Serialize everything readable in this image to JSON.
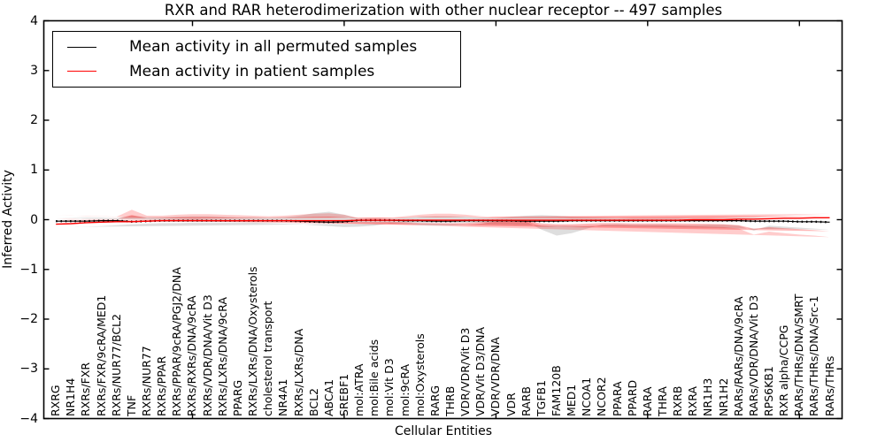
{
  "chart_data": {
    "type": "line",
    "title": "RXR and RAR heterodimerization with other nuclear receptor -- 497 samples",
    "xlabel": "Cellular Entities",
    "ylabel": "Inferred Activity",
    "ylim": [
      -4,
      4
    ],
    "yticks": [
      4,
      3,
      2,
      1,
      0,
      -1,
      -2,
      -3,
      -4
    ],
    "ytick_labels": [
      "4",
      "3",
      "2",
      "1",
      "0",
      "−1",
      "−2",
      "−3",
      "−4"
    ],
    "xtick_major_indices": [
      9,
      19,
      29,
      39,
      49
    ],
    "grid": false,
    "legend_position": "upper left",
    "categories": [
      "RXRG",
      "NR1H4",
      "RXRs/FXR",
      "RXRs/FXR/9cRA/MED1",
      "RXRs/NUR77/BCL2",
      "TNF",
      "RXRs/NUR77",
      "RXRs/PPAR",
      "RXRs/PPAR/9cRA/PGJ2/DNA",
      "RXRs/RXRs/DNA/9cRA",
      "RXRs/VDR/DNA/Vit D3",
      "RXRs/LXRs/DNA/9cRA",
      "PPARG",
      "RXRs/LXRs/DNA/Oxysterols",
      "cholesterol transport",
      "NR4A1",
      "RXRs/LXRs/DNA",
      "BCL2",
      "ABCA1",
      "SREBF1",
      "mol:ATRA",
      "mol:Bile acids",
      "mol:Vit D3",
      "mol:9cRA",
      "mol:Oxysterols",
      "RARG",
      "THRB",
      "VDR/VDR/Vit D3",
      "VDR/Vit D3/DNA",
      "VDR/VDR/DNA",
      "VDR",
      "RARB",
      "TGFB1",
      "FAM120B",
      "MED1",
      "NCOA1",
      "NCOR2",
      "PPARA",
      "PPARD",
      "RARA",
      "THRA",
      "RXRB",
      "RXRA",
      "NR1H3",
      "NR1H2",
      "RARs/RARs/DNA/9cRA",
      "RARs/VDR/DNA/Vit D3",
      "RPS6KB1",
      "RXR alpha/CCPG",
      "RARs/THRs/DNA/SMRT",
      "RARs/THRs/DNA/Src-1",
      "RARs/THRs"
    ],
    "series": [
      {
        "name": "Mean activity in all permuted samples",
        "color": "#000000",
        "values": [
          -0.03,
          -0.03,
          -0.03,
          -0.02,
          -0.02,
          -0.04,
          -0.03,
          -0.02,
          -0.02,
          -0.02,
          -0.02,
          -0.02,
          -0.02,
          -0.02,
          -0.02,
          -0.02,
          -0.03,
          -0.04,
          -0.05,
          -0.04,
          -0.01,
          -0.01,
          -0.01,
          -0.02,
          -0.02,
          -0.03,
          -0.03,
          -0.02,
          -0.02,
          -0.02,
          -0.02,
          -0.03,
          -0.03,
          -0.03,
          -0.02,
          -0.02,
          -0.02,
          -0.02,
          -0.02,
          -0.02,
          -0.02,
          -0.02,
          -0.02,
          -0.02,
          -0.02,
          -0.02,
          -0.03,
          -0.03,
          -0.03,
          -0.04,
          -0.04,
          -0.05
        ]
      },
      {
        "name": "Mean activity in patient samples",
        "color": "#ff0000",
        "values": [
          -0.09,
          -0.08,
          -0.06,
          -0.05,
          -0.04,
          -0.04,
          -0.03,
          -0.02,
          -0.02,
          -0.02,
          -0.02,
          -0.02,
          -0.02,
          -0.02,
          -0.02,
          -0.02,
          -0.02,
          -0.02,
          -0.02,
          -0.02,
          -0.01,
          -0.01,
          -0.01,
          -0.01,
          -0.01,
          -0.01,
          -0.01,
          -0.01,
          -0.01,
          -0.01,
          -0.01,
          -0.01,
          -0.01,
          -0.01,
          -0.01,
          -0.01,
          -0.01,
          -0.01,
          -0.01,
          -0.01,
          -0.01,
          -0.01,
          0.0,
          0.0,
          0.0,
          0.01,
          0.01,
          0.02,
          0.03,
          0.03,
          0.04,
          0.04
        ]
      }
    ],
    "bands": [
      {
        "name": "permuted-samples-range",
        "color": "#888888",
        "upper": [
          0.03,
          0.03,
          0.04,
          0.04,
          0.03,
          0.08,
          0.05,
          0.05,
          0.06,
          0.07,
          0.07,
          0.06,
          0.05,
          0.05,
          0.04,
          0.05,
          0.08,
          0.13,
          0.16,
          0.1,
          0.02,
          0.02,
          0.02,
          0.04,
          0.06,
          0.07,
          0.07,
          0.06,
          0.04,
          0.03,
          0.06,
          0.08,
          0.09,
          0.08,
          0.06,
          0.05,
          0.04,
          0.03,
          0.03,
          0.03,
          0.03,
          0.03,
          0.03,
          0.03,
          0.03,
          0.04,
          0.04,
          0.03,
          0.02,
          0.02,
          0.02,
          0.02
        ],
        "lower": [
          -0.2,
          -0.18,
          -0.16,
          -0.14,
          -0.12,
          -0.22,
          -0.12,
          -0.1,
          -0.1,
          -0.11,
          -0.11,
          -0.1,
          -0.1,
          -0.1,
          -0.09,
          -0.1,
          -0.18,
          -0.27,
          -0.32,
          -0.2,
          -0.04,
          -0.03,
          -0.04,
          -0.08,
          -0.1,
          -0.12,
          -0.12,
          -0.11,
          -0.08,
          -0.07,
          -0.12,
          -0.14,
          -0.15,
          -0.13,
          -0.11,
          -0.09,
          -0.08,
          -0.07,
          -0.06,
          -0.06,
          -0.06,
          -0.06,
          -0.06,
          -0.07,
          -0.07,
          -0.08,
          -0.09,
          -0.11,
          -0.13,
          -0.14,
          -0.15,
          -0.15
        ]
      },
      {
        "name": "patient-samples-range",
        "color": "#ff0000",
        "upper": [
          0.09,
          0.08,
          0.08,
          0.07,
          0.06,
          0.2,
          0.08,
          0.08,
          0.1,
          0.11,
          0.11,
          0.1,
          0.09,
          0.08,
          0.07,
          0.08,
          0.1,
          0.12,
          0.13,
          0.1,
          0.03,
          0.02,
          0.04,
          0.07,
          0.1,
          0.12,
          0.12,
          0.1,
          0.07,
          0.05,
          0.05,
          0.05,
          0.05,
          0.05,
          0.04,
          0.04,
          0.04,
          0.04,
          0.03,
          0.03,
          0.03,
          0.03,
          0.04,
          0.04,
          0.05,
          0.06,
          0.07,
          0.08,
          0.09,
          0.1,
          0.11,
          0.12
        ],
        "lower": [
          -0.35,
          -0.32,
          -0.3,
          -0.27,
          -0.24,
          -0.3,
          -0.18,
          -0.15,
          -0.14,
          -0.13,
          -0.12,
          -0.12,
          -0.12,
          -0.12,
          -0.11,
          -0.11,
          -0.13,
          -0.15,
          -0.15,
          -0.12,
          -0.03,
          -0.02,
          -0.04,
          -0.08,
          -0.11,
          -0.12,
          -0.12,
          -0.11,
          -0.08,
          -0.06,
          -0.06,
          -0.06,
          -0.06,
          -0.05,
          -0.05,
          -0.04,
          -0.04,
          -0.04,
          -0.04,
          -0.04,
          -0.04,
          -0.04,
          -0.04,
          -0.04,
          -0.04,
          -0.04,
          -0.03,
          -0.03,
          -0.02,
          -0.02,
          -0.02,
          -0.01
        ]
      }
    ]
  },
  "colors": {
    "permuted_line": "#000000",
    "patient_line": "#ff0000",
    "background": "#ffffff"
  }
}
